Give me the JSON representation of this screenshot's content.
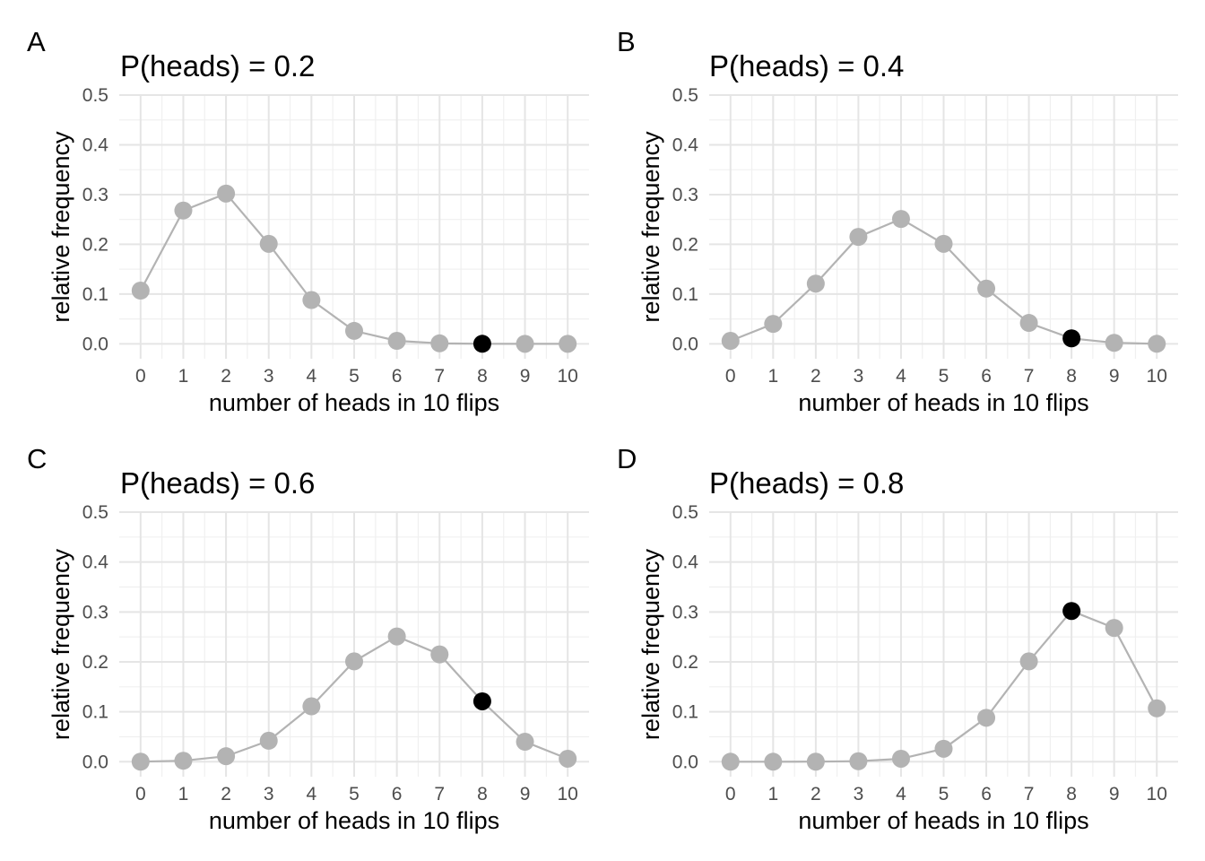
{
  "chart_data": [
    {
      "type": "line",
      "panel_label": "A",
      "title": "P(heads) = 0.2",
      "xlabel": "number of heads in 10 flips",
      "ylabel": "relative frequency",
      "x": [
        0,
        1,
        2,
        3,
        4,
        5,
        6,
        7,
        8,
        9,
        10
      ],
      "values": [
        0.107,
        0.268,
        0.302,
        0.201,
        0.088,
        0.026,
        0.006,
        0.001,
        0.0001,
        0.0,
        0.0
      ],
      "highlight_x": 8,
      "xlim": [
        -0.5,
        10.5
      ],
      "ylim": [
        -0.03,
        0.5
      ],
      "xticks": [
        0,
        1,
        2,
        3,
        4,
        5,
        6,
        7,
        8,
        9,
        10
      ],
      "yticks": [
        "0.0",
        "0.1",
        "0.2",
        "0.3",
        "0.4",
        "0.5"
      ],
      "grid": true
    },
    {
      "type": "line",
      "panel_label": "B",
      "title": "P(heads) = 0.4",
      "xlabel": "number of heads in 10 flips",
      "ylabel": "relative frequency",
      "x": [
        0,
        1,
        2,
        3,
        4,
        5,
        6,
        7,
        8,
        9,
        10
      ],
      "values": [
        0.006,
        0.04,
        0.121,
        0.215,
        0.251,
        0.201,
        0.111,
        0.042,
        0.011,
        0.002,
        0.0001
      ],
      "highlight_x": 8,
      "xlim": [
        -0.5,
        10.5
      ],
      "ylim": [
        -0.03,
        0.5
      ],
      "xticks": [
        0,
        1,
        2,
        3,
        4,
        5,
        6,
        7,
        8,
        9,
        10
      ],
      "yticks": [
        "0.0",
        "0.1",
        "0.2",
        "0.3",
        "0.4",
        "0.5"
      ],
      "grid": true
    },
    {
      "type": "line",
      "panel_label": "C",
      "title": "P(heads) = 0.6",
      "xlabel": "number of heads in 10 flips",
      "ylabel": "relative frequency",
      "x": [
        0,
        1,
        2,
        3,
        4,
        5,
        6,
        7,
        8,
        9,
        10
      ],
      "values": [
        0.0001,
        0.002,
        0.011,
        0.042,
        0.111,
        0.201,
        0.251,
        0.215,
        0.121,
        0.04,
        0.006
      ],
      "highlight_x": 8,
      "xlim": [
        -0.5,
        10.5
      ],
      "ylim": [
        -0.03,
        0.5
      ],
      "xticks": [
        0,
        1,
        2,
        3,
        4,
        5,
        6,
        7,
        8,
        9,
        10
      ],
      "yticks": [
        "0.0",
        "0.1",
        "0.2",
        "0.3",
        "0.4",
        "0.5"
      ],
      "grid": true
    },
    {
      "type": "line",
      "panel_label": "D",
      "title": "P(heads) = 0.8",
      "xlabel": "number of heads in 10 flips",
      "ylabel": "relative frequency",
      "x": [
        0,
        1,
        2,
        3,
        4,
        5,
        6,
        7,
        8,
        9,
        10
      ],
      "values": [
        0.0,
        0.0,
        0.0001,
        0.001,
        0.006,
        0.026,
        0.088,
        0.201,
        0.302,
        0.268,
        0.107
      ],
      "highlight_x": 8,
      "xlim": [
        -0.5,
        10.5
      ],
      "ylim": [
        -0.03,
        0.5
      ],
      "xticks": [
        0,
        1,
        2,
        3,
        4,
        5,
        6,
        7,
        8,
        9,
        10
      ],
      "yticks": [
        "0.0",
        "0.1",
        "0.2",
        "0.3",
        "0.4",
        "0.5"
      ],
      "grid": true
    }
  ],
  "colors": {
    "point": "#b3b3b3",
    "line": "#b3b3b3",
    "highlight_point": "#000000",
    "grid_major": "#e5e5e5",
    "grid_minor": "#f0f0f0",
    "tick_text": "#4d4d4d",
    "background": "#ffffff"
  }
}
